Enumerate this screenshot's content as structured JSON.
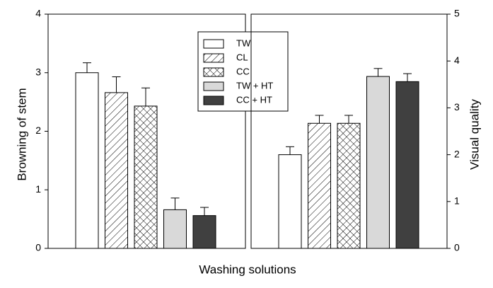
{
  "chart_data": [
    {
      "type": "bar",
      "ylabel": "Browning of stem",
      "xlabel": "Washing solutions",
      "axis_side": "left",
      "ylim": [
        0,
        4
      ],
      "yticks": [
        0,
        1,
        2,
        3,
        4
      ],
      "legend": true,
      "series": [
        {
          "name": "TW",
          "color": "#ffffff",
          "pattern": "solid",
          "values": [
            3.0
          ],
          "errors": [
            0.17
          ]
        },
        {
          "name": "CL",
          "color": "#ffffff",
          "pattern": "hatch",
          "values": [
            2.66
          ],
          "errors": [
            0.27
          ]
        },
        {
          "name": "CC",
          "color": "#ffffff",
          "pattern": "crosshatch",
          "values": [
            2.43
          ],
          "errors": [
            0.31
          ]
        },
        {
          "name": "TW + HT",
          "color": "#d9d9d9",
          "pattern": "solid",
          "values": [
            0.66
          ],
          "errors": [
            0.2
          ]
        },
        {
          "name": "CC + HT",
          "color": "#404040",
          "pattern": "solid",
          "values": [
            0.56
          ],
          "errors": [
            0.14
          ]
        }
      ]
    },
    {
      "type": "bar",
      "ylabel": "Visual quality",
      "axis_side": "right",
      "ylim": [
        0,
        5
      ],
      "yticks": [
        0,
        1,
        2,
        3,
        4,
        5
      ],
      "series": [
        {
          "color": "#ffffff",
          "pattern": "solid",
          "values": [
            2.0
          ],
          "errors": [
            0.17
          ]
        },
        {
          "color": "#ffffff",
          "pattern": "hatch",
          "values": [
            2.67
          ],
          "errors": [
            0.17
          ]
        },
        {
          "color": "#ffffff",
          "pattern": "crosshatch",
          "values": [
            2.67
          ],
          "errors": [
            0.17
          ]
        },
        {
          "color": "#d9d9d9",
          "pattern": "solid",
          "values": [
            3.67
          ],
          "errors": [
            0.17
          ]
        },
        {
          "color": "#404040",
          "pattern": "solid",
          "values": [
            3.56
          ],
          "errors": [
            0.17
          ]
        }
      ]
    }
  ]
}
